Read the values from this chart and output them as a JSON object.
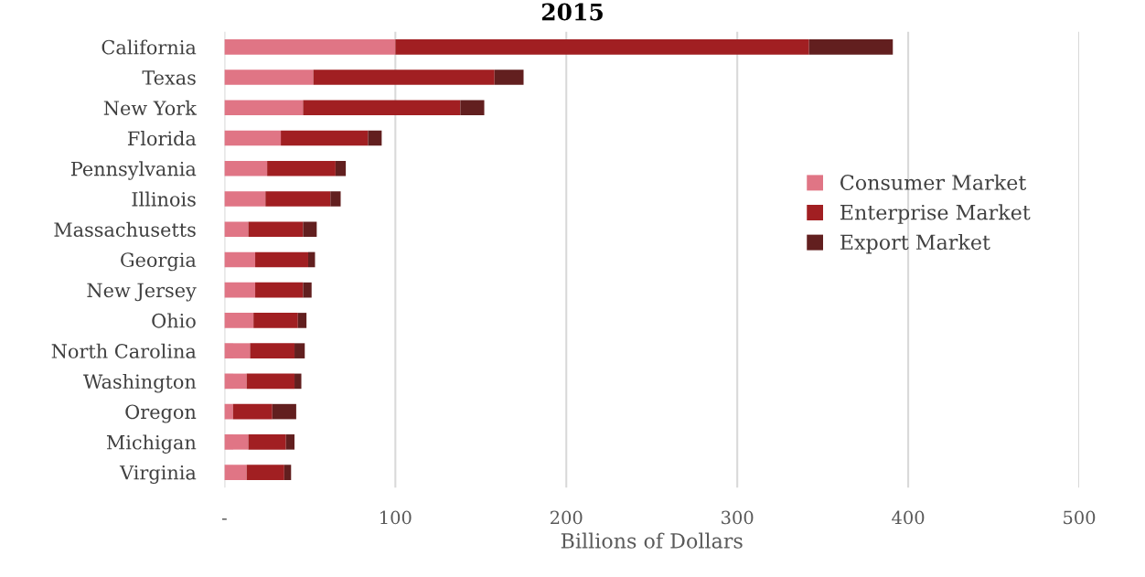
{
  "chart_data": {
    "type": "bar",
    "orientation": "horizontal",
    "stacked": true,
    "title": "2015",
    "xlabel": "Billions of Dollars",
    "categories": [
      "California",
      "Texas",
      "New York",
      "Florida",
      "Pennsylvania",
      "Illinois",
      "Massachusetts",
      "Georgia",
      "New Jersey",
      "Ohio",
      "North Carolina",
      "Washington",
      "Oregon",
      "Michigan",
      "Virginia"
    ],
    "series": [
      {
        "name": "Consumer Market",
        "color": "#e07585",
        "values": [
          100,
          52,
          46,
          33,
          25,
          24,
          14,
          18,
          18,
          17,
          15,
          13,
          5,
          14,
          13
        ]
      },
      {
        "name": "Enterprise Market",
        "color": "#a11f22",
        "values": [
          242,
          106,
          92,
          51,
          40,
          38,
          32,
          31,
          28,
          26,
          26,
          28,
          23,
          22,
          22
        ]
      },
      {
        "name": "Export Market",
        "color": "#621f1f",
        "values": [
          49,
          17,
          14,
          8,
          6,
          6,
          8,
          4,
          5,
          5,
          6,
          4,
          14,
          5,
          4
        ]
      }
    ],
    "xlim": [
      0,
      500
    ],
    "xticks": [
      {
        "value": 0,
        "label": "-"
      },
      100,
      200,
      300,
      400,
      500
    ],
    "grid": "x",
    "legend": "right"
  }
}
